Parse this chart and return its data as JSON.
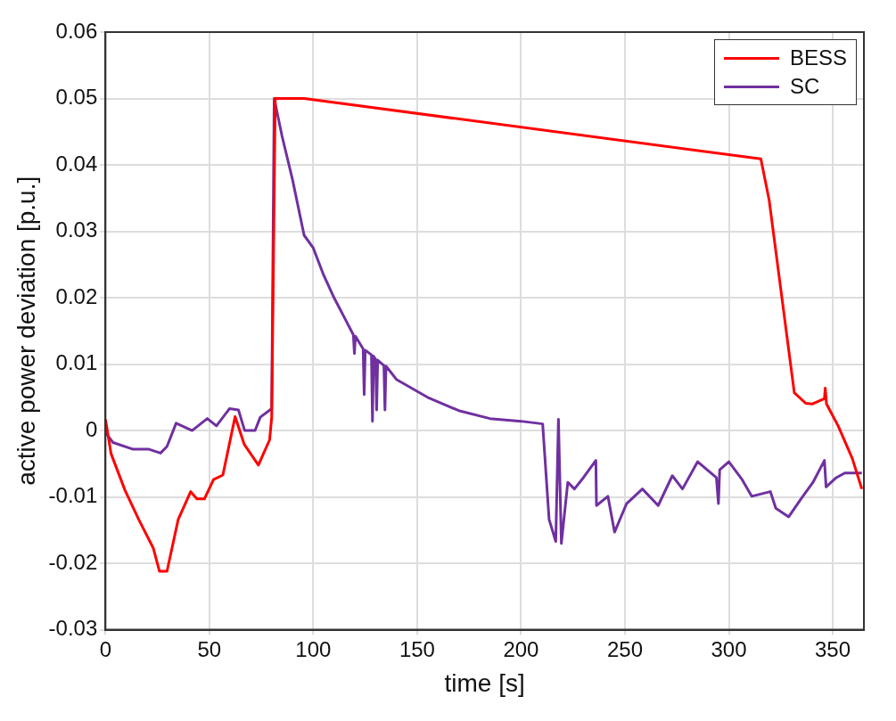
{
  "chart_data": {
    "type": "line",
    "xlabel": "time [s]",
    "ylabel": "active power deviation [p.u.]",
    "xlim": [
      0,
      365
    ],
    "xticks": [
      0,
      50,
      100,
      150,
      200,
      250,
      300,
      350
    ],
    "ylim": [
      -0.03,
      0.06
    ],
    "yticks": [
      -0.03,
      -0.02,
      -0.01,
      0,
      0.01,
      0.02,
      0.03,
      0.04,
      0.05,
      0.06
    ],
    "grid": true,
    "legend": "top right",
    "marker": "none",
    "line_style": "solid",
    "series": [
      {
        "name": "BESS",
        "color": "#ff0000",
        "x": [
          0,
          2.7,
          9.4,
          16,
          23,
          26,
          29.6,
          35,
          41,
          44,
          47.6,
          52,
          56.5,
          62.4,
          66.8,
          73.6,
          79,
          80,
          81.7,
          95.6,
          315.4,
          319.4,
          331.5,
          337,
          340,
          346,
          346.4,
          347,
          352.6,
          359.4,
          364
        ],
        "values": [
          0.0017,
          -0.0035,
          -0.009,
          -0.0134,
          -0.0177,
          -0.0212,
          -0.0212,
          -0.0134,
          -0.0092,
          -0.0103,
          -0.0103,
          -0.0074,
          -0.0067,
          0.0021,
          -0.0021,
          -0.0052,
          -0.0014,
          0.002,
          0.05,
          0.05,
          0.0409,
          0.0347,
          0.0057,
          0.0041,
          0.004,
          0.0048,
          0.0064,
          0.004,
          0.0007,
          -0.0042,
          -0.0088
        ]
      },
      {
        "name": "SC",
        "color": "#7030a0",
        "x": [
          0,
          3.6,
          13,
          20.6,
          26.5,
          29.6,
          34,
          41.7,
          49,
          53.4,
          59.7,
          64,
          67,
          72,
          74.5,
          80,
          81.2,
          85,
          90,
          95.6,
          100,
          105,
          110,
          115,
          119.3,
          119.8,
          120.3,
          124,
          124.5,
          125,
          128,
          128.5,
          129,
          130,
          130.5,
          131,
          134,
          134.5,
          135,
          140,
          155,
          170,
          185,
          200,
          210.4,
          213.5,
          216.7,
          218,
          219.4,
          222.5,
          225.7,
          230,
          236,
          236.3,
          241.8,
          245,
          250.8,
          258.4,
          266,
          272.8,
          277.7,
          285,
          294,
          295,
          295.6,
          300,
          306.4,
          311,
          320,
          322.6,
          328.8,
          334.7,
          340.5,
          346,
          346.8,
          351.7,
          355.8,
          364
        ],
        "values": [
          -0.0003,
          -0.0018,
          -0.0028,
          -0.0028,
          -0.0034,
          -0.0024,
          0.0011,
          0,
          0.0018,
          0.0007,
          0.0033,
          0.0031,
          0,
          0,
          0.002,
          0.0033,
          0.05,
          0.0443,
          0.0378,
          0.0294,
          0.0275,
          0.0234,
          0.02,
          0.017,
          0.0144,
          0.0116,
          0.0142,
          0.0123,
          0.0054,
          0.0121,
          0.0114,
          0.0014,
          0.0112,
          0.0107,
          0.0031,
          0.0106,
          0.0098,
          0.0031,
          0.0097,
          0.0077,
          0.005,
          0.003,
          0.0018,
          0.0014,
          0.001,
          -0.0134,
          -0.0167,
          0.0017,
          -0.017,
          -0.0078,
          -0.0088,
          -0.0071,
          -0.0045,
          -0.0113,
          -0.0099,
          -0.0153,
          -0.011,
          -0.0088,
          -0.0113,
          -0.0068,
          -0.0088,
          -0.0047,
          -0.0071,
          -0.011,
          -0.0059,
          -0.0047,
          -0.0074,
          -0.0099,
          -0.0092,
          -0.0117,
          -0.013,
          -0.0103,
          -0.0078,
          -0.0045,
          -0.0085,
          -0.0071,
          -0.0064,
          -0.0064
        ]
      }
    ]
  }
}
